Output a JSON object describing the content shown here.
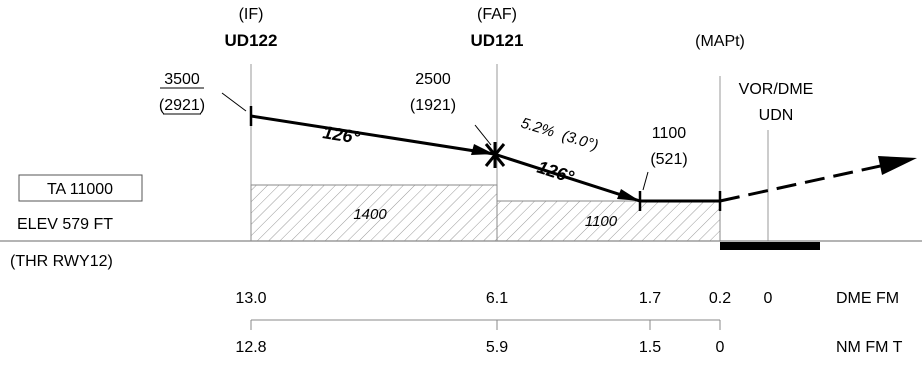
{
  "fixes": {
    "if": {
      "role": "(IF)",
      "name": "UD122"
    },
    "faf": {
      "role": "(FAF)",
      "name": "UD121"
    },
    "mapt": {
      "role": "(MAPt)"
    },
    "vordme": {
      "line1": "VOR/DME",
      "line2": "UDN"
    }
  },
  "altitudes": {
    "if": {
      "alt": "3500",
      "height": "(2921)"
    },
    "faf": {
      "alt": "2500",
      "height": "(1921)"
    },
    "step": {
      "alt": "1100",
      "height": "(521)"
    }
  },
  "tracks": {
    "initial": "126°",
    "final": "126°"
  },
  "gradient": {
    "percent": "5.2%",
    "angle": "(3.0°)"
  },
  "minimums": {
    "initial": "1400",
    "final": "1100"
  },
  "info": {
    "ta": "TA 11000",
    "elev": "ELEV 579 FT",
    "thr": "(THR RWY12)"
  },
  "scales": {
    "dme": {
      "label": "DME FM",
      "ticks": [
        "13.0",
        "6.1",
        "1.7",
        "0.2",
        "0"
      ]
    },
    "nm": {
      "label": "NM FM T",
      "ticks": [
        "12.8",
        "5.9",
        "1.5",
        "0"
      ]
    }
  }
}
